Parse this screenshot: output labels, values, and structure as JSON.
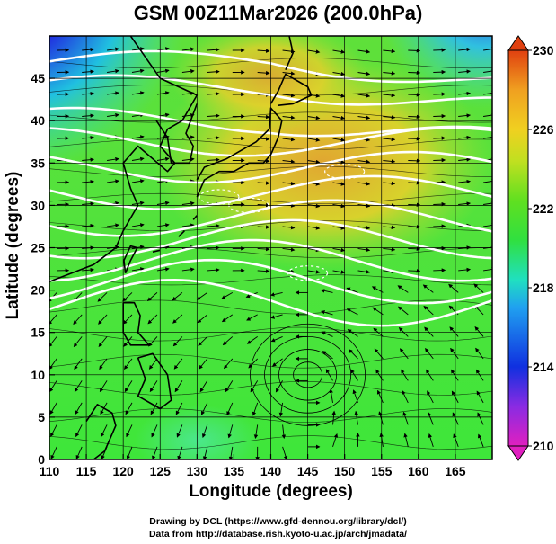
{
  "title": "GSM 00Z11Mar2026 (200.0hPa)",
  "x_axis": {
    "label": "Longitude (degrees)",
    "range": [
      110,
      170
    ],
    "ticks": [
      110,
      115,
      120,
      125,
      130,
      135,
      140,
      145,
      150,
      155,
      160,
      165
    ]
  },
  "y_axis": {
    "label": "Latitude  (degrees)",
    "range": [
      0,
      50
    ],
    "ticks": [
      0,
      5,
      10,
      15,
      20,
      25,
      30,
      35,
      40,
      45
    ]
  },
  "colorbar": {
    "range": [
      210,
      230
    ],
    "labels": [
      210,
      214,
      218,
      222,
      226,
      230
    ],
    "colors": [
      "#e020c0",
      "#8a2be2",
      "#1030e0",
      "#20a0f0",
      "#20e0c0",
      "#30e040",
      "#60e020",
      "#c0e020",
      "#f0d020",
      "#f0a020",
      "#e04010"
    ]
  },
  "map": {
    "background_colors": {
      "green": "#3ee63a",
      "light_green": "#7ee840",
      "yellow": "#e6d82a",
      "orange": "#f0a030",
      "cyan": "#40e0d0",
      "blue": "#2040e0",
      "magenta": "#d020c0"
    },
    "streamline_color": "#000000",
    "contour_color": "#ffffff",
    "coastline_color": "#000000"
  },
  "credits": {
    "line1": "Drawing by DCL (https://www.gfd-dennou.org/library/dcl/)",
    "line2": "Data from http://database.rish.kyoto-u.ac.jp/arch/jmadata/"
  }
}
